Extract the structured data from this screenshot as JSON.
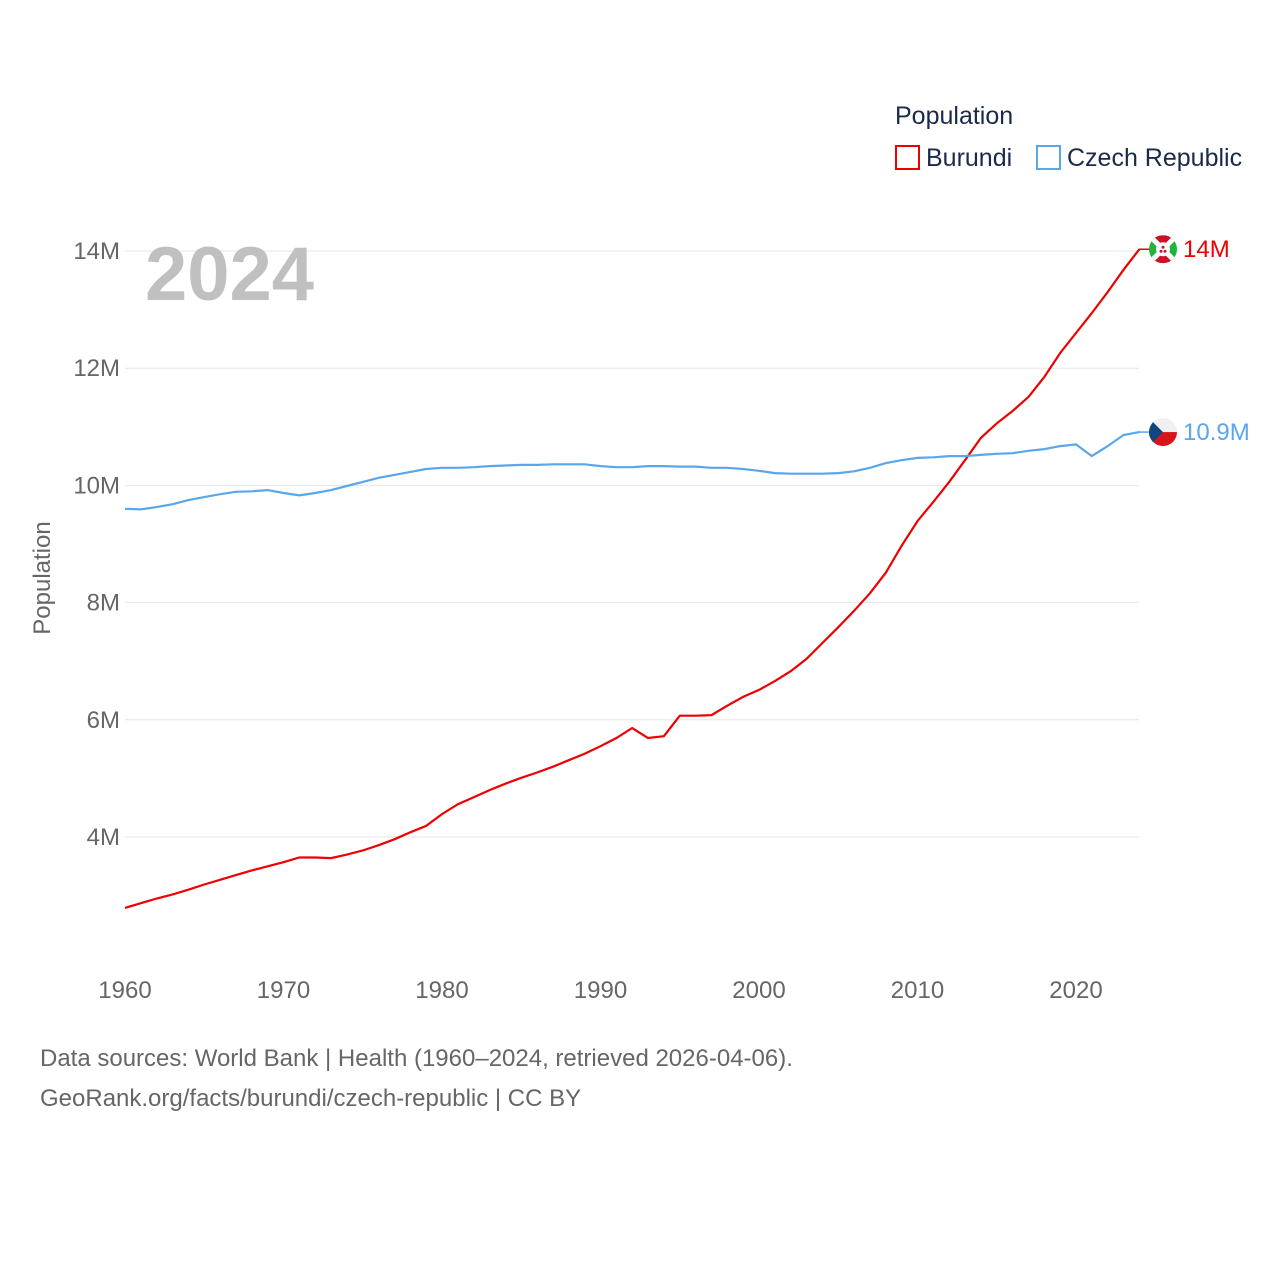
{
  "chart_data": {
    "type": "line",
    "ylabel": "Population",
    "xlabel": "",
    "year_label": "2024",
    "legend": {
      "title": "Population",
      "placement": "top-right"
    },
    "x": [
      1960,
      1961,
      1962,
      1963,
      1964,
      1965,
      1966,
      1967,
      1968,
      1969,
      1970,
      1971,
      1972,
      1973,
      1974,
      1975,
      1976,
      1977,
      1978,
      1979,
      1980,
      1981,
      1982,
      1983,
      1984,
      1985,
      1986,
      1987,
      1988,
      1989,
      1990,
      1991,
      1992,
      1993,
      1994,
      1995,
      1996,
      1997,
      1998,
      1999,
      2000,
      2001,
      2002,
      2003,
      2004,
      2005,
      2006,
      2007,
      2008,
      2009,
      2010,
      2011,
      2012,
      2013,
      2014,
      2015,
      2016,
      2017,
      2018,
      2019,
      2020,
      2021,
      2022,
      2023,
      2024
    ],
    "series": [
      {
        "name": "Burundi",
        "color": "#ee0000",
        "end_label": "14M",
        "flag": "burundi",
        "values": [
          2.79,
          2.87,
          2.95,
          3.02,
          3.1,
          3.19,
          3.27,
          3.35,
          3.43,
          3.5,
          3.57,
          3.65,
          3.65,
          3.64,
          3.7,
          3.77,
          3.86,
          3.96,
          4.08,
          4.19,
          4.39,
          4.56,
          4.68,
          4.8,
          4.91,
          5.01,
          5.1,
          5.2,
          5.31,
          5.42,
          5.55,
          5.69,
          5.86,
          5.69,
          5.72,
          6.07,
          6.07,
          6.08,
          6.24,
          6.39,
          6.51,
          6.66,
          6.83,
          7.04,
          7.31,
          7.58,
          7.86,
          8.16,
          8.51,
          8.97,
          9.39,
          9.72,
          10.06,
          10.43,
          10.81,
          11.06,
          11.27,
          11.51,
          11.85,
          12.26,
          12.6,
          12.94,
          13.3,
          13.68,
          14.03
        ]
      },
      {
        "name": "Czech Republic",
        "color": "#5aa6ea",
        "end_label": "10.9M",
        "flag": "czech",
        "values": [
          9.6,
          9.59,
          9.63,
          9.68,
          9.75,
          9.8,
          9.85,
          9.89,
          9.9,
          9.92,
          9.87,
          9.83,
          9.87,
          9.92,
          9.99,
          10.06,
          10.13,
          10.18,
          10.23,
          10.28,
          10.3,
          10.3,
          10.31,
          10.33,
          10.34,
          10.35,
          10.35,
          10.36,
          10.36,
          10.36,
          10.33,
          10.31,
          10.31,
          10.33,
          10.33,
          10.32,
          10.32,
          10.3,
          10.3,
          10.28,
          10.25,
          10.21,
          10.2,
          10.2,
          10.2,
          10.21,
          10.24,
          10.3,
          10.38,
          10.43,
          10.47,
          10.48,
          10.5,
          10.5,
          10.52,
          10.54,
          10.55,
          10.59,
          10.62,
          10.67,
          10.7,
          10.5,
          10.67,
          10.86,
          10.91
        ]
      }
    ],
    "yticks": [
      {
        "v": 4,
        "label": "4M"
      },
      {
        "v": 6,
        "label": "6M"
      },
      {
        "v": 8,
        "label": "8M"
      },
      {
        "v": 10,
        "label": "10M"
      },
      {
        "v": 12,
        "label": "12M"
      },
      {
        "v": 14,
        "label": "14M"
      }
    ],
    "xticks": [
      1960,
      1970,
      1980,
      1990,
      2000,
      2010,
      2020
    ],
    "ylim": [
      2,
      14.6
    ],
    "xlim": [
      1960,
      2024
    ],
    "grid": true
  },
  "sources": {
    "line1": "Data sources: World Bank | Health (1960–2024, retrieved 2026-04-06).",
    "line2": "GeoRank.org/facts/burundi/czech-republic | CC BY"
  }
}
